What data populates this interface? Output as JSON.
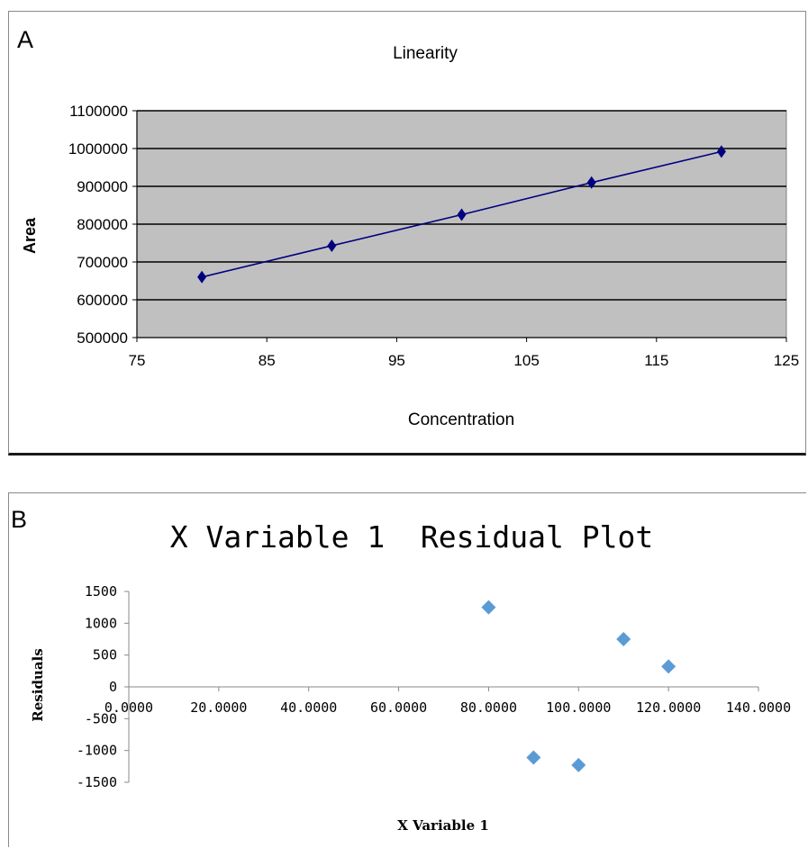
{
  "chart_data": [
    {
      "panel_label": "A",
      "type": "line",
      "title": "Linearity",
      "xlabel": "Concentration",
      "ylabel": "Area",
      "xlim": [
        75,
        125
      ],
      "ylim": [
        500000,
        1100000
      ],
      "xticks": [
        "75",
        "85",
        "95",
        "105",
        "115",
        "125"
      ],
      "yticks": [
        "500000",
        "600000",
        "700000",
        "800000",
        "900000",
        "1000000",
        "1100000"
      ],
      "grid": true,
      "plot_background": "#c0c0c0",
      "series": [
        {
          "color": "#000080",
          "marker": "diamond",
          "x": [
            80,
            90,
            100,
            110,
            120
          ],
          "y": [
            660000,
            743000,
            825000,
            910000,
            992000
          ]
        }
      ]
    },
    {
      "panel_label": "B",
      "type": "scatter",
      "title": "X Variable 1  Residual Plot",
      "xlabel": "X Variable 1",
      "ylabel": "Residuals",
      "xlim": [
        0,
        140
      ],
      "ylim": [
        -1500,
        1500
      ],
      "xticks": [
        "0.0000",
        "20.0000",
        "40.0000",
        "60.0000",
        "80.0000",
        "100.0000",
        "120.0000",
        "140.0000"
      ],
      "yticks": [
        "-1500",
        "-1000",
        "-500",
        "0",
        "500",
        "1000",
        "1500"
      ],
      "grid": false,
      "series": [
        {
          "color": "#5b9bd5",
          "marker": "diamond",
          "x": [
            80,
            90,
            100,
            110,
            120
          ],
          "y": [
            1250,
            -1110,
            -1230,
            750,
            320
          ]
        }
      ]
    }
  ]
}
